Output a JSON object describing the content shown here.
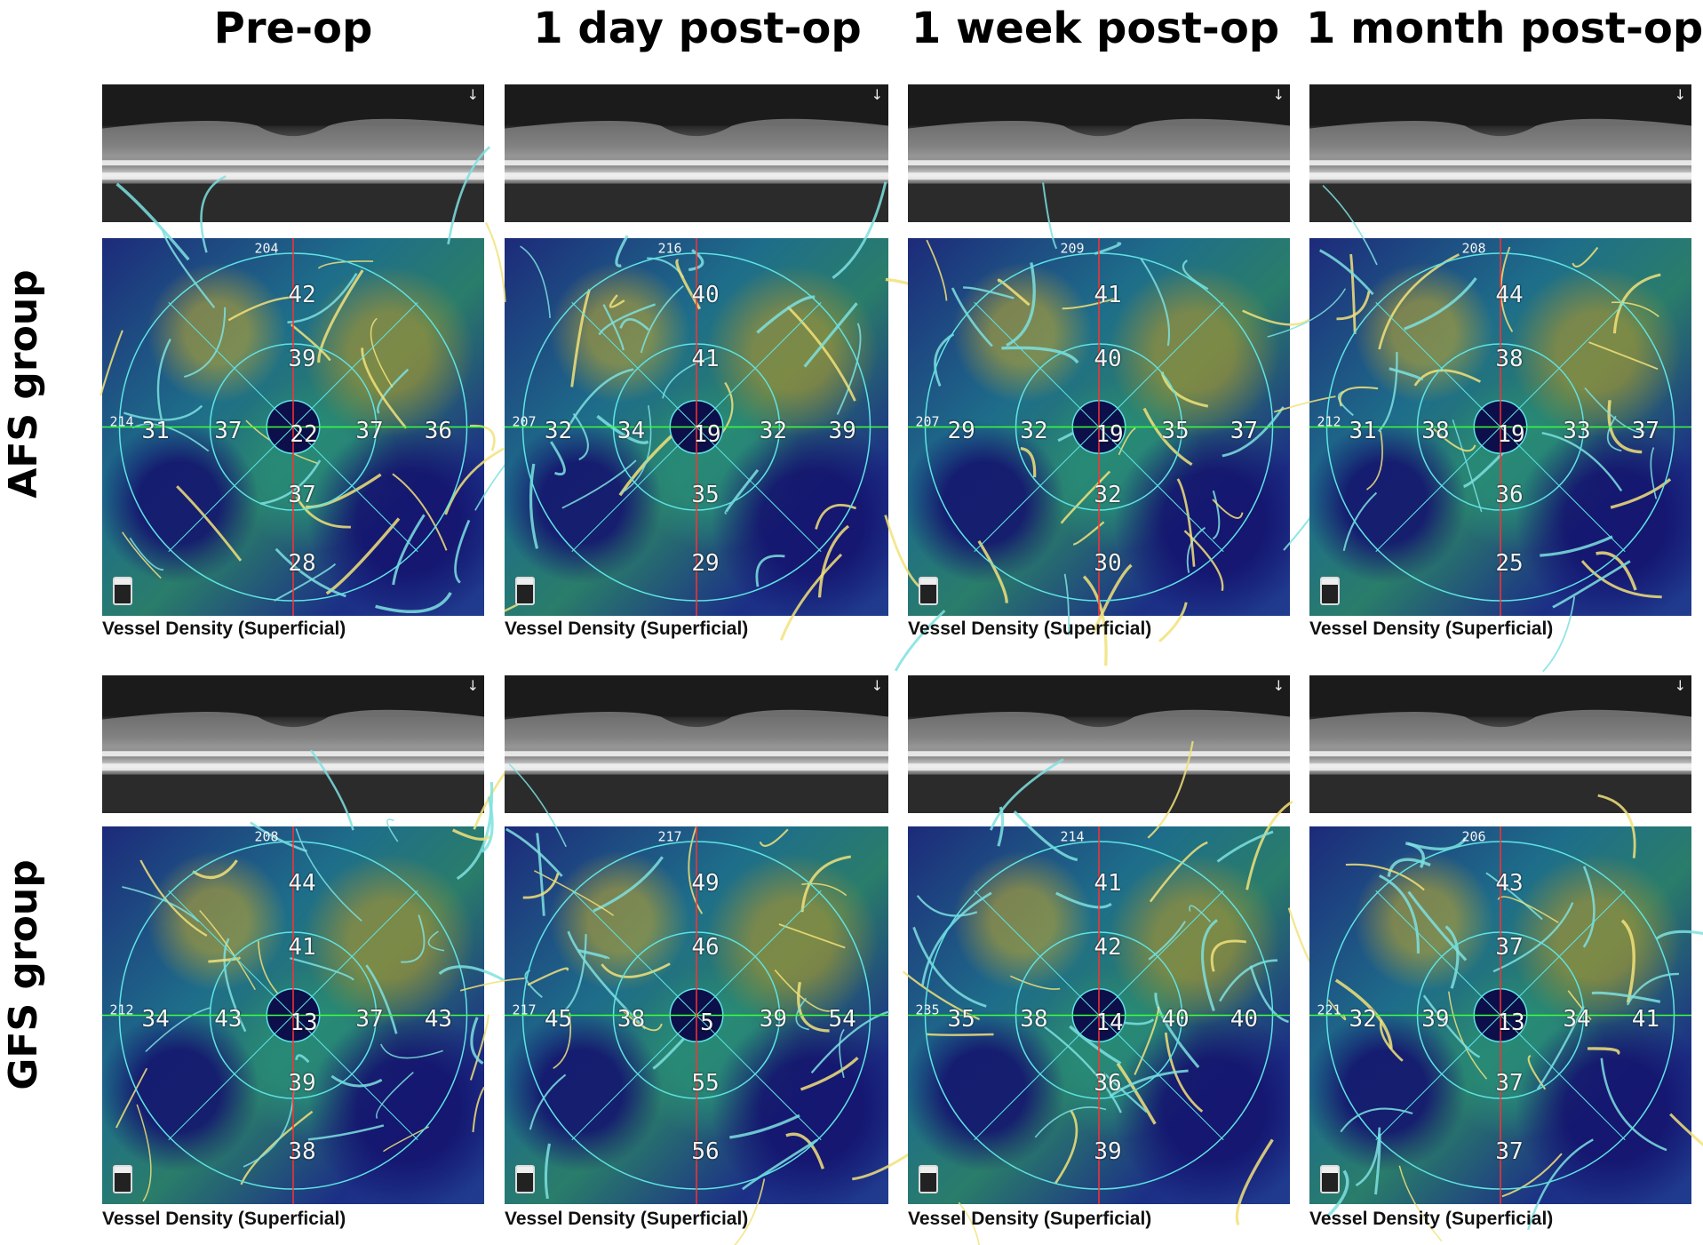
{
  "columns": [
    "Pre-op",
    "1 day post-op",
    "1 week post-op",
    "1 month post-op"
  ],
  "rows": [
    {
      "label": "AFS group",
      "panels": [
        {
          "top": "204",
          "left": "214",
          "inner": "42",
          "mid": "39",
          "center": "22",
          "l2": "31",
          "l1": "37",
          "r1": "37",
          "r2": "36",
          "b1": "37",
          "b2": "28",
          "caption": "Vessel Density (Superficial)"
        },
        {
          "top": "216",
          "left": "207",
          "inner": "40",
          "mid": "41",
          "center": "19",
          "l2": "32",
          "l1": "34",
          "r1": "32",
          "r2": "39",
          "b1": "35",
          "b2": "29",
          "caption": "Vessel Density (Superficial)"
        },
        {
          "top": "209",
          "left": "207",
          "inner": "41",
          "mid": "40",
          "center": "19",
          "l2": "29",
          "l1": "32",
          "r1": "35",
          "r2": "37",
          "b1": "32",
          "b2": "30",
          "caption": "Vessel Density (Superficial)"
        },
        {
          "top": "208",
          "left": "212",
          "inner": "44",
          "mid": "38",
          "center": "19",
          "l2": "31",
          "l1": "38",
          "r1": "33",
          "r2": "37",
          "b1": "36",
          "b2": "25",
          "caption": "Vessel Density (Superficial)"
        }
      ]
    },
    {
      "label": "GFS group",
      "panels": [
        {
          "top": "208",
          "left": "212",
          "inner": "44",
          "mid": "41",
          "center": "13",
          "l2": "34",
          "l1": "43",
          "r1": "37",
          "r2": "43",
          "b1": "39",
          "b2": "38",
          "caption": "Vessel Density (Superficial)"
        },
        {
          "top": "217",
          "left": "217",
          "inner": "49",
          "mid": "46",
          "center": "5",
          "l2": "45",
          "l1": "38",
          "r1": "39",
          "r2": "54",
          "b1": "55",
          "b2": "56",
          "caption": "Vessel Density (Superficial)"
        },
        {
          "top": "214",
          "left": "235",
          "inner": "41",
          "mid": "42",
          "center": "14",
          "l2": "35",
          "l1": "38",
          "r1": "40",
          "r2": "40",
          "b1": "36",
          "b2": "39",
          "caption": "Vessel Density (Superficial)"
        },
        {
          "top": "206",
          "left": "221",
          "inner": "43",
          "mid": "37",
          "center": "13",
          "l2": "32",
          "l1": "39",
          "r1": "34",
          "r2": "41",
          "b1": "37",
          "b2": "37",
          "caption": "Vessel Density (Superficial)"
        }
      ]
    }
  ]
}
